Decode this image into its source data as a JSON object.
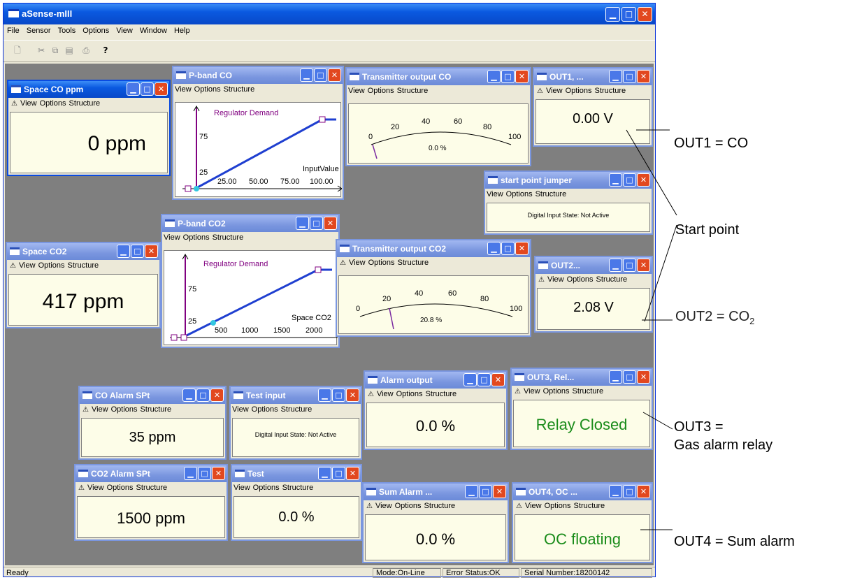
{
  "app": {
    "title": "aSense-mIII"
  },
  "menu": [
    "File",
    "Sensor",
    "Tools",
    "Options",
    "View",
    "Window",
    "Help"
  ],
  "toolbar_icons": [
    "new-file-icon",
    "cut-icon",
    "copy-icon",
    "paste-icon",
    "print-icon",
    "help-icon"
  ],
  "child_menu": {
    "view": "View",
    "options": "Options",
    "structure": "Structure"
  },
  "windows": {
    "space_co": {
      "title": "Space CO ppm",
      "value": "0 ppm"
    },
    "pband_co": {
      "title": "P-band CO",
      "curve_label": "Regulator Demand",
      "input_label": "InputValue",
      "y_ticks": [
        "75",
        "25"
      ],
      "x_ticks": [
        "25.00",
        "50.00",
        "75.00",
        "100.00"
      ]
    },
    "transmitter_co": {
      "title": "Transmitter output CO",
      "readout": "0.0 %",
      "scale": [
        "0",
        "20",
        "40",
        "60",
        "80",
        "100"
      ],
      "value_percent": 0
    },
    "out1": {
      "title": "OUT1, ...",
      "value": "0.00 V"
    },
    "start_jumper": {
      "title": "start point jumper",
      "state": "Digital Input State: Not Active"
    },
    "space_co2": {
      "title": "Space CO2",
      "value": "417 ppm"
    },
    "pband_co2": {
      "title": "P-band CO2",
      "curve_label": "Regulator Demand",
      "input_label": "Space CO2",
      "y_ticks": [
        "75",
        "25"
      ],
      "x_ticks": [
        "500",
        "1000",
        "1500",
        "2000"
      ]
    },
    "transmitter_co2": {
      "title": "Transmitter output CO2",
      "readout": "20.8 %",
      "scale": [
        "0",
        "20",
        "40",
        "60",
        "80",
        "100"
      ],
      "value_percent": 20.8
    },
    "out2": {
      "title": "OUT2...",
      "value": "2.08 V"
    },
    "alarm_output": {
      "title": "Alarm output",
      "value": "0.0 %"
    },
    "out3": {
      "title": "OUT3, Rel...",
      "value": "Relay Closed"
    },
    "co_alarm": {
      "title": "CO Alarm SPt",
      "value": "35 ppm"
    },
    "test_input": {
      "title": "Test input",
      "state": "Digital Input State: Not Active"
    },
    "co2_alarm": {
      "title": "CO2 Alarm SPt",
      "value": "1500 ppm"
    },
    "test": {
      "title": "Test",
      "value": "0.0 %"
    },
    "sum_alarm": {
      "title": "Sum Alarm ...",
      "value": "0.0 %"
    },
    "out4": {
      "title": "OUT4, OC ...",
      "value": "OC floating"
    }
  },
  "status": {
    "ready": "Ready",
    "mode": "Mode:On-Line",
    "error": "Error Status:OK",
    "serial": "Serial Number:18200142"
  },
  "annotations": {
    "out1": "OUT1 = CO",
    "start": "Start point",
    "out2_pre": "OUT2 = CO",
    "out2_sub": "2",
    "out3_l1": "OUT3 =",
    "out3_l2": "Gas alarm relay",
    "out4": "OUT4 = Sum alarm"
  },
  "colors": {
    "relay_green": "#1a8c1a",
    "curve_purple": "#800080",
    "curve_blue": "#1f3fd0",
    "needle_purple": "#7a2aa0"
  }
}
